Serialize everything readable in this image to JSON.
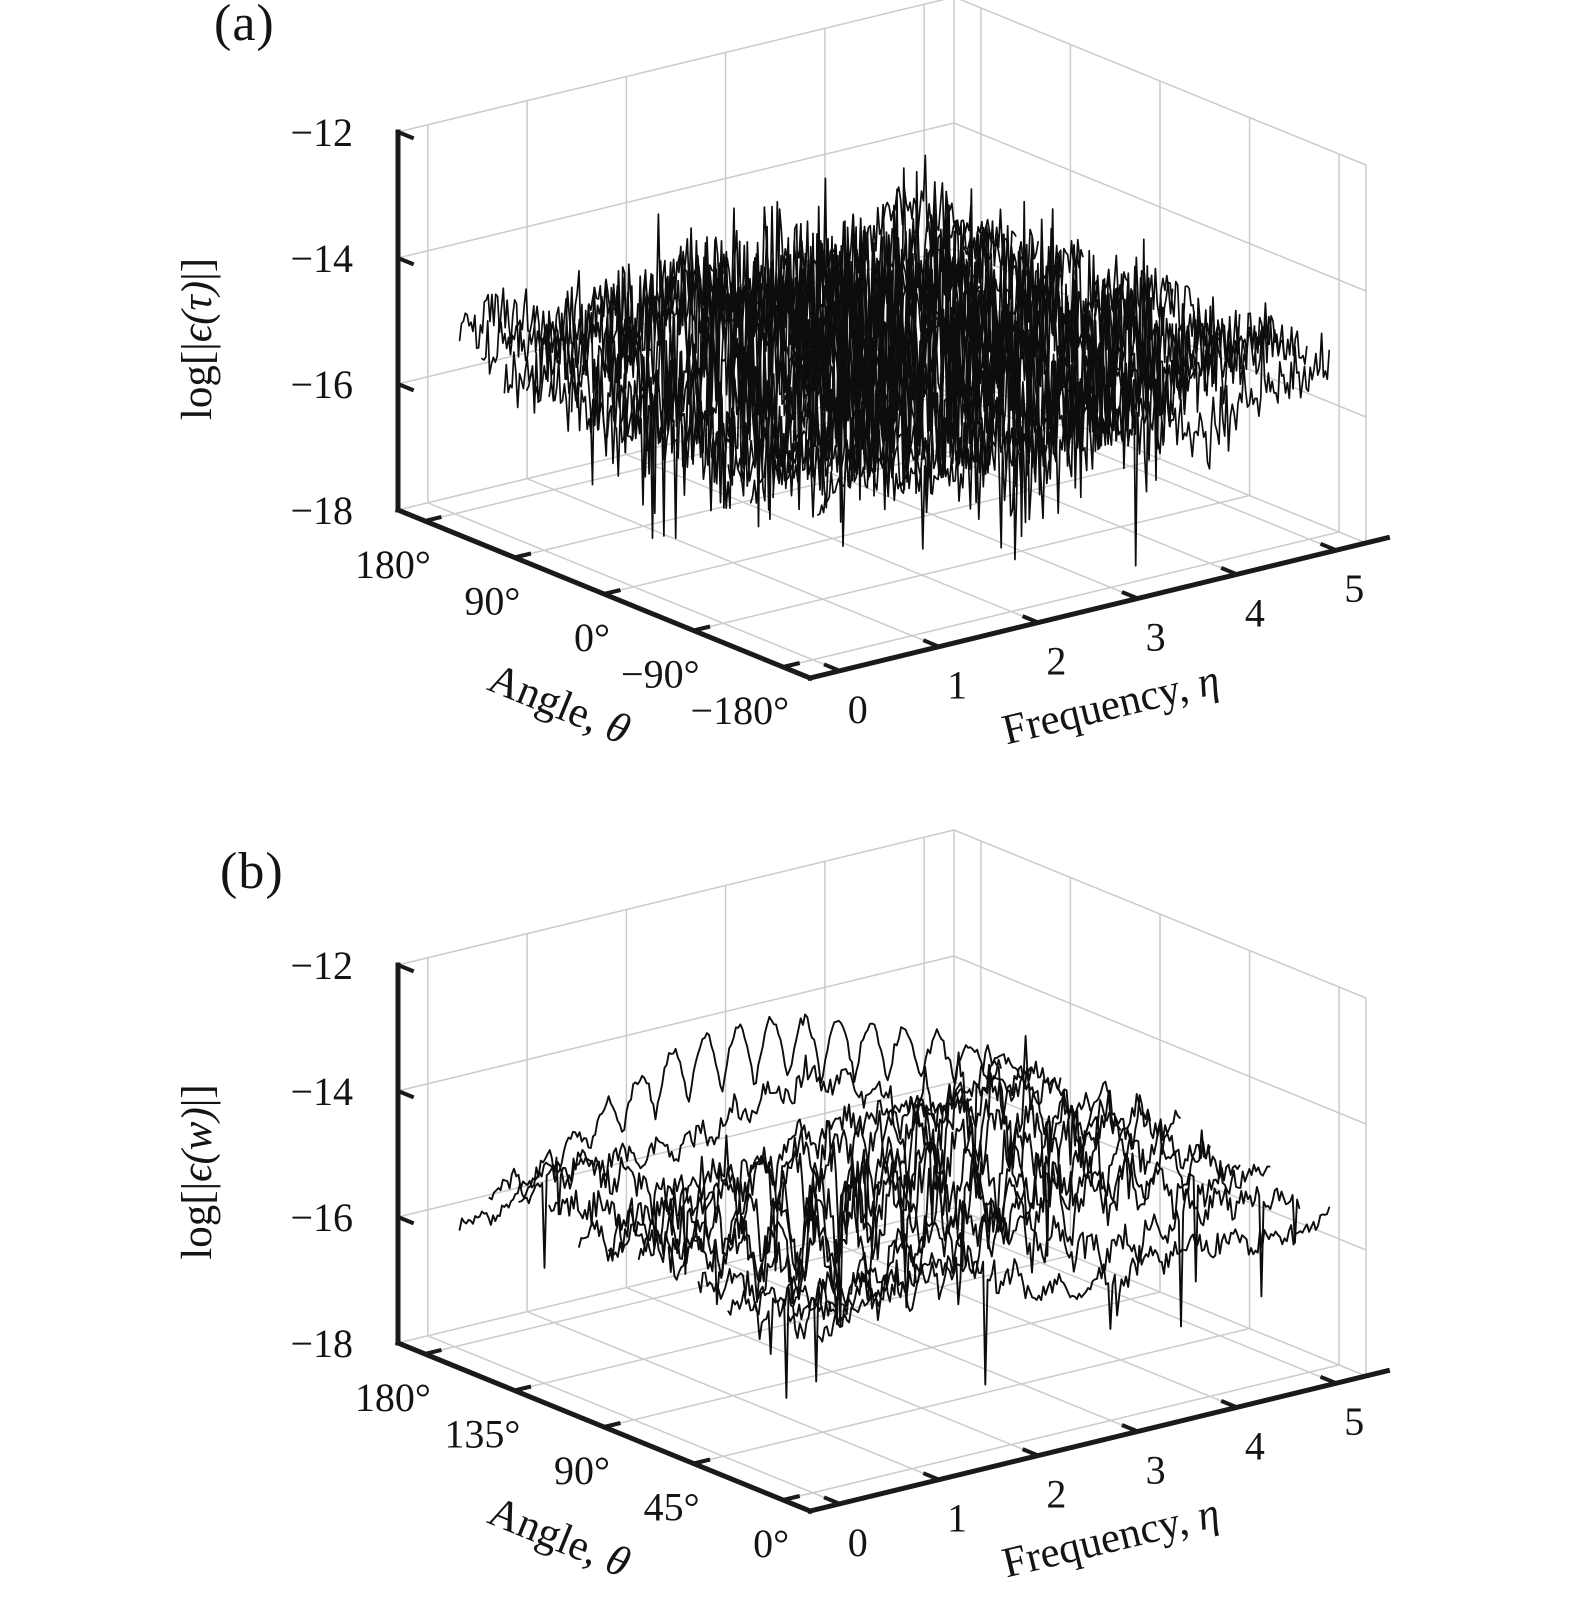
{
  "figure": {
    "panels": [
      {
        "label": "(a)"
      },
      {
        "label": "(b)"
      }
    ]
  },
  "style": {
    "background": "#ffffff",
    "axis_color": "#1a1a1a",
    "grid_color": "#cbcbcb",
    "trace_color": "#0d0d0d",
    "text_color": "#141414"
  },
  "chart_data": [
    {
      "panel": "a",
      "type": "line",
      "subtype": "3d-waterfall",
      "title": "",
      "xlabel": "Frequency, η",
      "xlabel_parts": [
        "Frequency, ",
        "η"
      ],
      "ylabel": "Angle, θ",
      "ylabel_parts": [
        "Angle, ",
        "θ"
      ],
      "zlabel": "log[|ϵ(τ)|]",
      "zlabel_parts": [
        "log[|",
        "ϵ(τ)",
        "|]"
      ],
      "x_ticks": [
        "0",
        "1",
        "2",
        "3",
        "4",
        "5"
      ],
      "x_tick_values": [
        0,
        1,
        2,
        3,
        4,
        5
      ],
      "y_ticks": [
        "180°",
        "90°",
        "0°",
        "−90°",
        "−180°"
      ],
      "y_tick_values_deg": [
        180,
        90,
        0,
        -90,
        -180
      ],
      "y_ticks_order": "back-to-front",
      "z_ticks": [
        "−12",
        "−14",
        "−16",
        "−18"
      ],
      "z_tick_values": [
        -12,
        -14,
        -16,
        -18
      ],
      "x_range": [
        0,
        5
      ],
      "y_range_deg": [
        -180,
        180
      ],
      "z_range": [
        -18,
        -12
      ],
      "grid": true,
      "legend": null,
      "series": {
        "style": "noise",
        "n_traces": 17,
        "points_per_trace": 270,
        "x_span": [
          0.05,
          5.2
        ],
        "z_mean": -15.35,
        "z_typical_band": [
          -17.2,
          -13.4
        ],
        "z_extremes": [
          -18,
          -12.1
        ],
        "character": "dense high-frequency noise traces, amplitude largest at mid-frequency and mid-angle, occasional deep spikes to the floor",
        "seed": 1337
      }
    },
    {
      "panel": "b",
      "type": "line",
      "subtype": "3d-waterfall",
      "title": "",
      "xlabel": "Frequency, η",
      "xlabel_parts": [
        "Frequency, ",
        "η"
      ],
      "ylabel": "Angle, θ",
      "ylabel_parts": [
        "Angle, ",
        "θ"
      ],
      "zlabel": "log[|ϵ(w)|]",
      "zlabel_parts": [
        "log[|",
        "ϵ(w)",
        "|]"
      ],
      "x_ticks": [
        "0",
        "1",
        "2",
        "3",
        "4",
        "5"
      ],
      "x_tick_values": [
        0,
        1,
        2,
        3,
        4,
        5
      ],
      "y_ticks": [
        "180°",
        "135°",
        "90°",
        "45°",
        "0°"
      ],
      "y_tick_values_deg": [
        180,
        135,
        90,
        45,
        0
      ],
      "y_ticks_order": "back-to-front",
      "z_ticks": [
        "−12",
        "−14",
        "−16",
        "−18"
      ],
      "z_tick_values": [
        -12,
        -14,
        -16,
        -18
      ],
      "x_range": [
        0,
        5
      ],
      "y_range_deg": [
        0,
        180
      ],
      "z_range": [
        -18,
        -12
      ],
      "grid": true,
      "legend": null,
      "series": {
        "style": "scallop",
        "n_traces": 13,
        "points_per_trace": 230,
        "x_span": [
          0.05,
          5.2
        ],
        "z_mean": -15.5,
        "z_typical_band": [
          -17.3,
          -13.8
        ],
        "z_extremes": [
          -17.9,
          -12.6
        ],
        "character": "smoother oscillatory scalloped traces; one elevated back trace with large periodic humps peaking near mid-frequency",
        "seed": 90217
      }
    }
  ]
}
